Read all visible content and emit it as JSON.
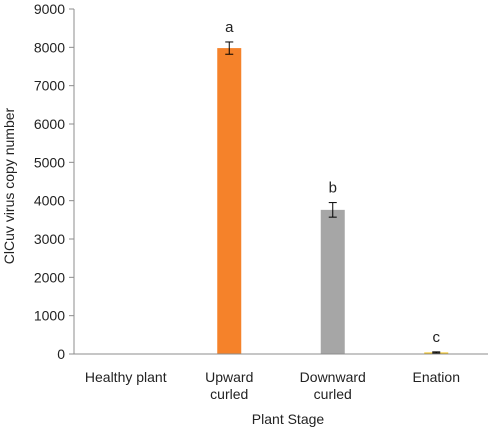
{
  "chart_data": {
    "type": "bar",
    "categories": [
      [
        "Healthy plant"
      ],
      [
        "Upward",
        "curled"
      ],
      [
        "Downward",
        "curled"
      ],
      [
        "Enation"
      ]
    ],
    "values": [
      0,
      7980,
      3760,
      40
    ],
    "errors": [
      0,
      160,
      190,
      15
    ],
    "bar_colors": [
      "#7f7f7f",
      "#f5822a",
      "#a6a6a6",
      "#f5c31a"
    ],
    "significance_letters": [
      "",
      "a",
      "b",
      "c"
    ],
    "xlabel": "Plant Stage",
    "ylabel": "ClCuv virus copy number",
    "ylim": [
      0,
      9000
    ],
    "yticks": [
      0,
      1000,
      2000,
      3000,
      4000,
      5000,
      6000,
      7000,
      8000,
      9000
    ],
    "grid": false,
    "legend": "none"
  }
}
